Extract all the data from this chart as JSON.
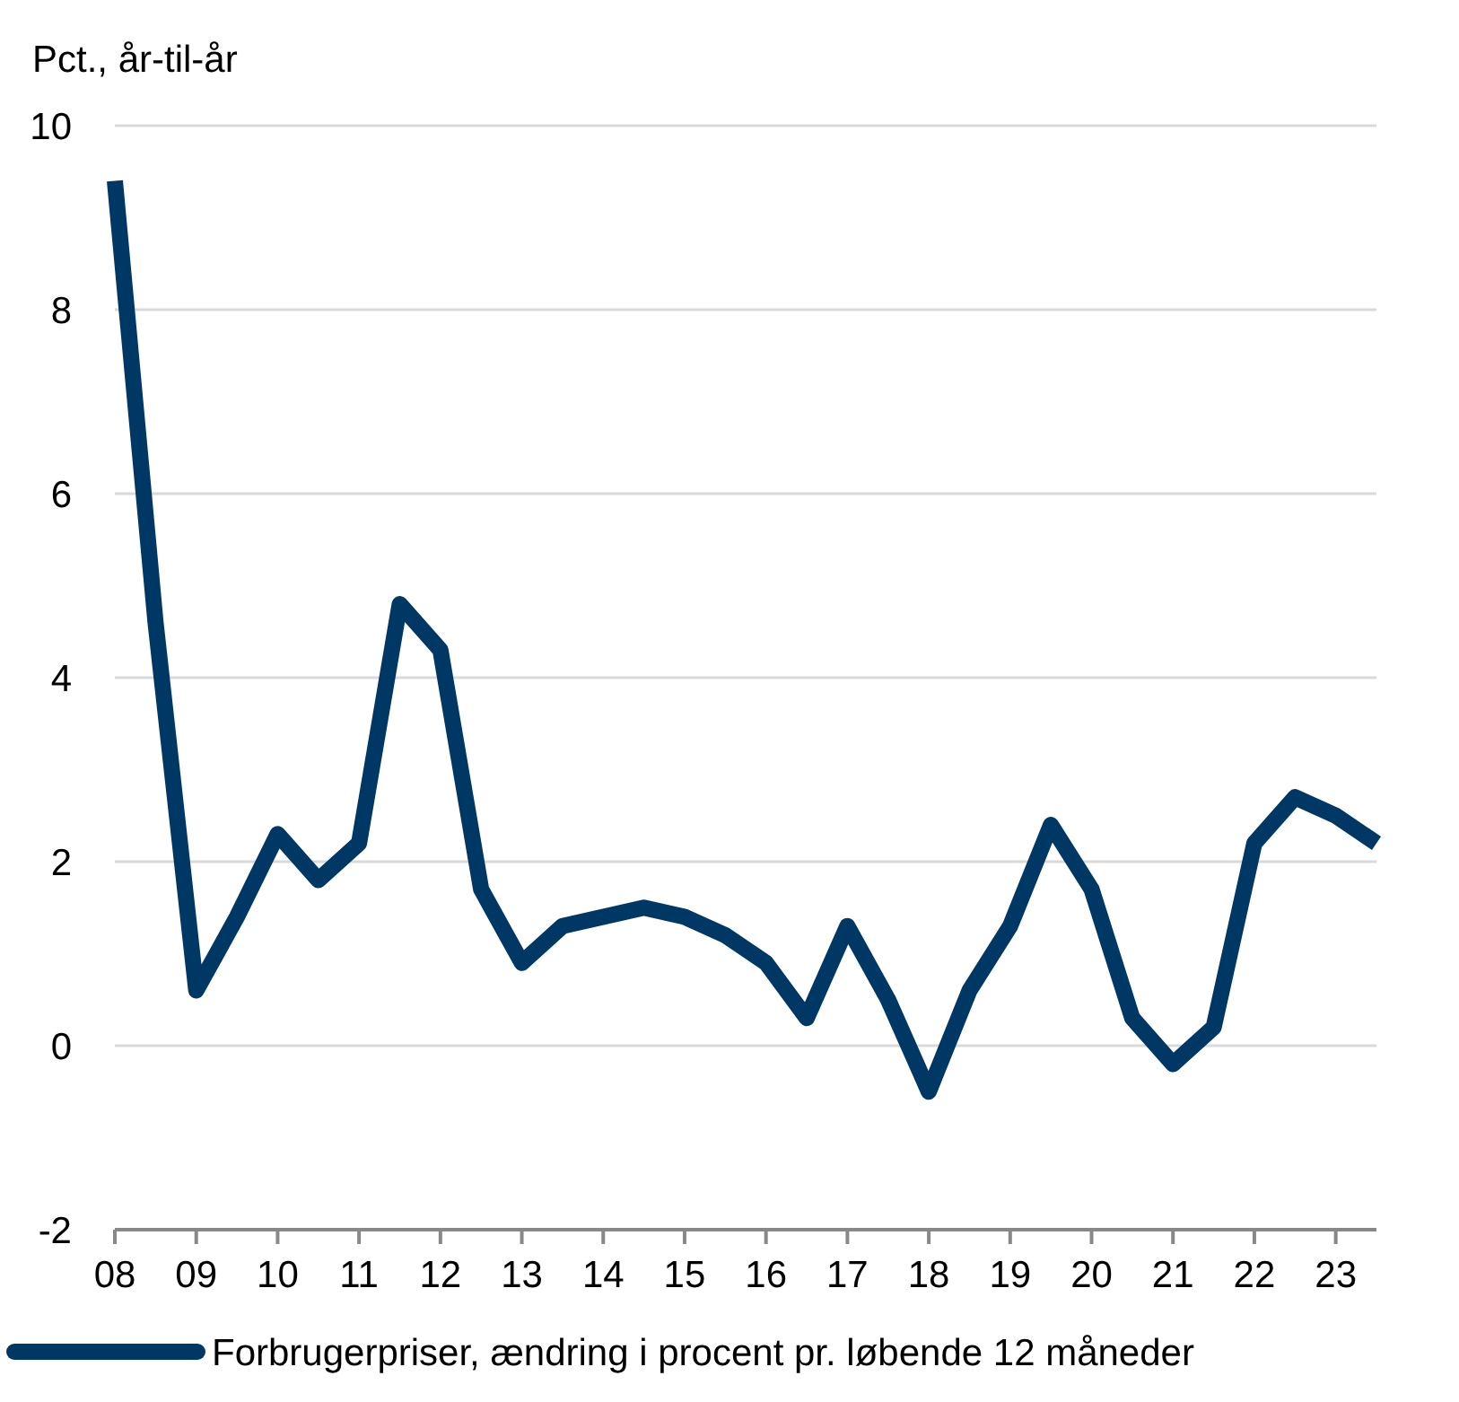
{
  "chart_data": {
    "type": "line",
    "ylabel": "Pct., år-til-år",
    "x": [
      2008,
      2008.5,
      2009,
      2009.5,
      2010,
      2010.5,
      2011,
      2011.5,
      2012,
      2012.5,
      2013,
      2013.5,
      2014,
      2014.5,
      2015,
      2015.5,
      2016,
      2016.5,
      2017,
      2017.5,
      2018,
      2018.5,
      2019,
      2019.5,
      2020,
      2020.5,
      2021,
      2021.5,
      2022,
      2022.5,
      2023,
      2023.5
    ],
    "series": [
      {
        "name": "Forbrugerpriser, ændring i procent pr. løbende 12 måneder",
        "color": "#003865",
        "values": [
          9.4,
          4.6,
          0.6,
          1.4,
          2.3,
          1.8,
          2.2,
          4.8,
          4.3,
          1.7,
          0.9,
          1.3,
          1.4,
          1.5,
          1.4,
          1.2,
          0.9,
          0.3,
          1.3,
          0.5,
          -0.5,
          0.6,
          1.3,
          2.4,
          1.7,
          0.3,
          -0.2,
          0.2,
          2.2,
          2.7,
          2.5,
          2.2
        ]
      }
    ],
    "xlim": [
      2008,
      2023.5
    ],
    "xticks": [
      {
        "value": 2008,
        "label": "08"
      },
      {
        "value": 2009,
        "label": "09"
      },
      {
        "value": 2010,
        "label": "10"
      },
      {
        "value": 2011,
        "label": "11"
      },
      {
        "value": 2012,
        "label": "12"
      },
      {
        "value": 2013,
        "label": "13"
      },
      {
        "value": 2014,
        "label": "14"
      },
      {
        "value": 2015,
        "label": "15"
      },
      {
        "value": 2016,
        "label": "16"
      },
      {
        "value": 2017,
        "label": "17"
      },
      {
        "value": 2018,
        "label": "18"
      },
      {
        "value": 2019,
        "label": "19"
      },
      {
        "value": 2020,
        "label": "20"
      },
      {
        "value": 2021,
        "label": "21"
      },
      {
        "value": 2022,
        "label": "22"
      },
      {
        "value": 2023,
        "label": "23"
      }
    ],
    "ylim": [
      -2,
      10
    ],
    "yticks": [
      -2,
      0,
      2,
      4,
      6,
      8,
      10
    ],
    "grid": "y",
    "legend": "bottom",
    "marker": "none",
    "line_style": "solid"
  }
}
